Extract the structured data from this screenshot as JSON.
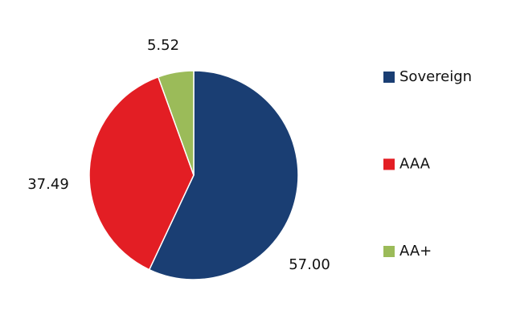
{
  "chart_data": {
    "type": "pie",
    "categories": [
      "Sovereign",
      "AAA",
      "AA+"
    ],
    "values": [
      57.0,
      37.49,
      5.52
    ],
    "value_labels": [
      "57.00",
      "37.49",
      "5.52"
    ],
    "colors": [
      "#1a3e73",
      "#e31e24",
      "#9bbb59"
    ],
    "legend": "right"
  }
}
